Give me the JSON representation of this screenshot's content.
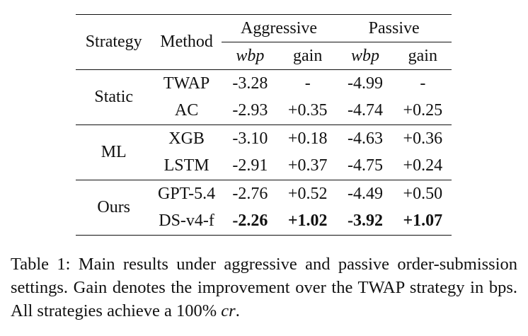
{
  "table": {
    "headers": {
      "strategy": "Strategy",
      "method": "Method",
      "group_aggressive": "Aggressive",
      "group_passive": "Passive",
      "metric_wbp": "wbp",
      "metric_gain": "gain"
    },
    "groups": [
      {
        "strategy": "Static",
        "rows": [
          {
            "method": "TWAP",
            "agg_wbp": "-3.28",
            "agg_gain": "-",
            "pas_wbp": "-4.99",
            "pas_gain": "-"
          },
          {
            "method": "AC",
            "agg_wbp": "-2.93",
            "agg_gain": "+0.35",
            "pas_wbp": "-4.74",
            "pas_gain": "+0.25"
          }
        ]
      },
      {
        "strategy": "ML",
        "rows": [
          {
            "method": "XGB",
            "agg_wbp": "-3.10",
            "agg_gain": "+0.18",
            "pas_wbp": "-4.63",
            "pas_gain": "+0.36"
          },
          {
            "method": "LSTM",
            "agg_wbp": "-2.91",
            "agg_gain": "+0.37",
            "pas_wbp": "-4.75",
            "pas_gain": "+0.24"
          }
        ]
      },
      {
        "strategy": "Ours",
        "rows": [
          {
            "method": "GPT-5.4",
            "agg_wbp": "-2.76",
            "agg_gain": "+0.52",
            "pas_wbp": "-4.49",
            "pas_gain": "+0.50"
          },
          {
            "method": "DS-v4-f",
            "agg_wbp": "-2.26",
            "agg_gain": "+1.02",
            "pas_wbp": "-3.92",
            "pas_gain": "+1.07"
          }
        ]
      }
    ]
  },
  "caption": {
    "prefix": "Table 1: Main results under aggressive and passive order-submission settings. Gain denotes the improvement over the TWAP strategy in bps. All strategies achieve a 100% ",
    "math": "cr",
    "suffix": "."
  }
}
